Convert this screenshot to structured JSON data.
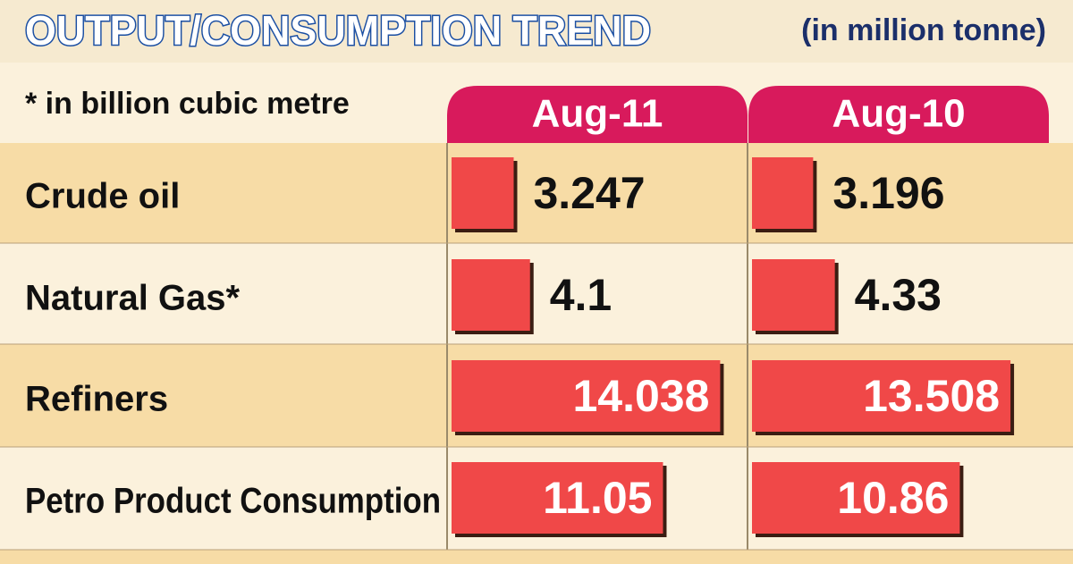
{
  "chart_data": {
    "type": "bar",
    "orientation": "horizontal",
    "title": "OUTPUT/CONSUMPTION TREND",
    "subtitle": "(in million tonne)",
    "note": "* in billion cubic metre",
    "categories": [
      "Crude oil",
      "Natural Gas*",
      "Refiners",
      "Petro Product Consumption"
    ],
    "series": [
      {
        "name": "Aug-11",
        "color": "#f04848",
        "values": [
          3.247,
          4.1,
          14.038,
          11.05
        ]
      },
      {
        "name": "Aug-10",
        "color": "#f04848",
        "values": [
          3.196,
          4.33,
          13.508,
          10.86
        ]
      }
    ],
    "tab_color": "#d81a5c"
  }
}
